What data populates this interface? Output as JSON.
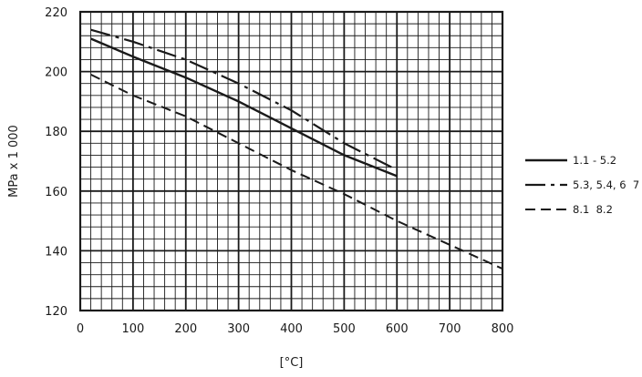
{
  "chart_data": {
    "type": "line",
    "xlabel": "[°C]",
    "ylabel": "MPa x 1 000",
    "xlim": [
      0,
      800
    ],
    "ylim": [
      120,
      220
    ],
    "x_ticks": [
      0,
      100,
      200,
      300,
      400,
      500,
      600,
      700,
      800
    ],
    "y_ticks": [
      120,
      140,
      160,
      180,
      200,
      220
    ],
    "x_minor_step": 20,
    "y_minor_step": 4,
    "grid": true,
    "legend_position": "right",
    "series": [
      {
        "name": "1.1 - 5.2",
        "style": "solid",
        "x": [
          20,
          100,
          200,
          300,
          400,
          500,
          600
        ],
        "y": [
          211,
          205,
          198,
          190,
          181,
          172,
          165
        ]
      },
      {
        "name": "5.3, 5.4, 6  7",
        "style": "dashdot",
        "x": [
          20,
          100,
          200,
          300,
          400,
          500,
          590
        ],
        "y": [
          214,
          210,
          204,
          196,
          187,
          176,
          168
        ]
      },
      {
        "name": "8.1  8.2",
        "style": "dashed",
        "x": [
          20,
          100,
          200,
          300,
          400,
          500,
          600,
          700,
          800
        ],
        "y": [
          199,
          192,
          185,
          176,
          167,
          159,
          150,
          142,
          134
        ]
      }
    ]
  }
}
